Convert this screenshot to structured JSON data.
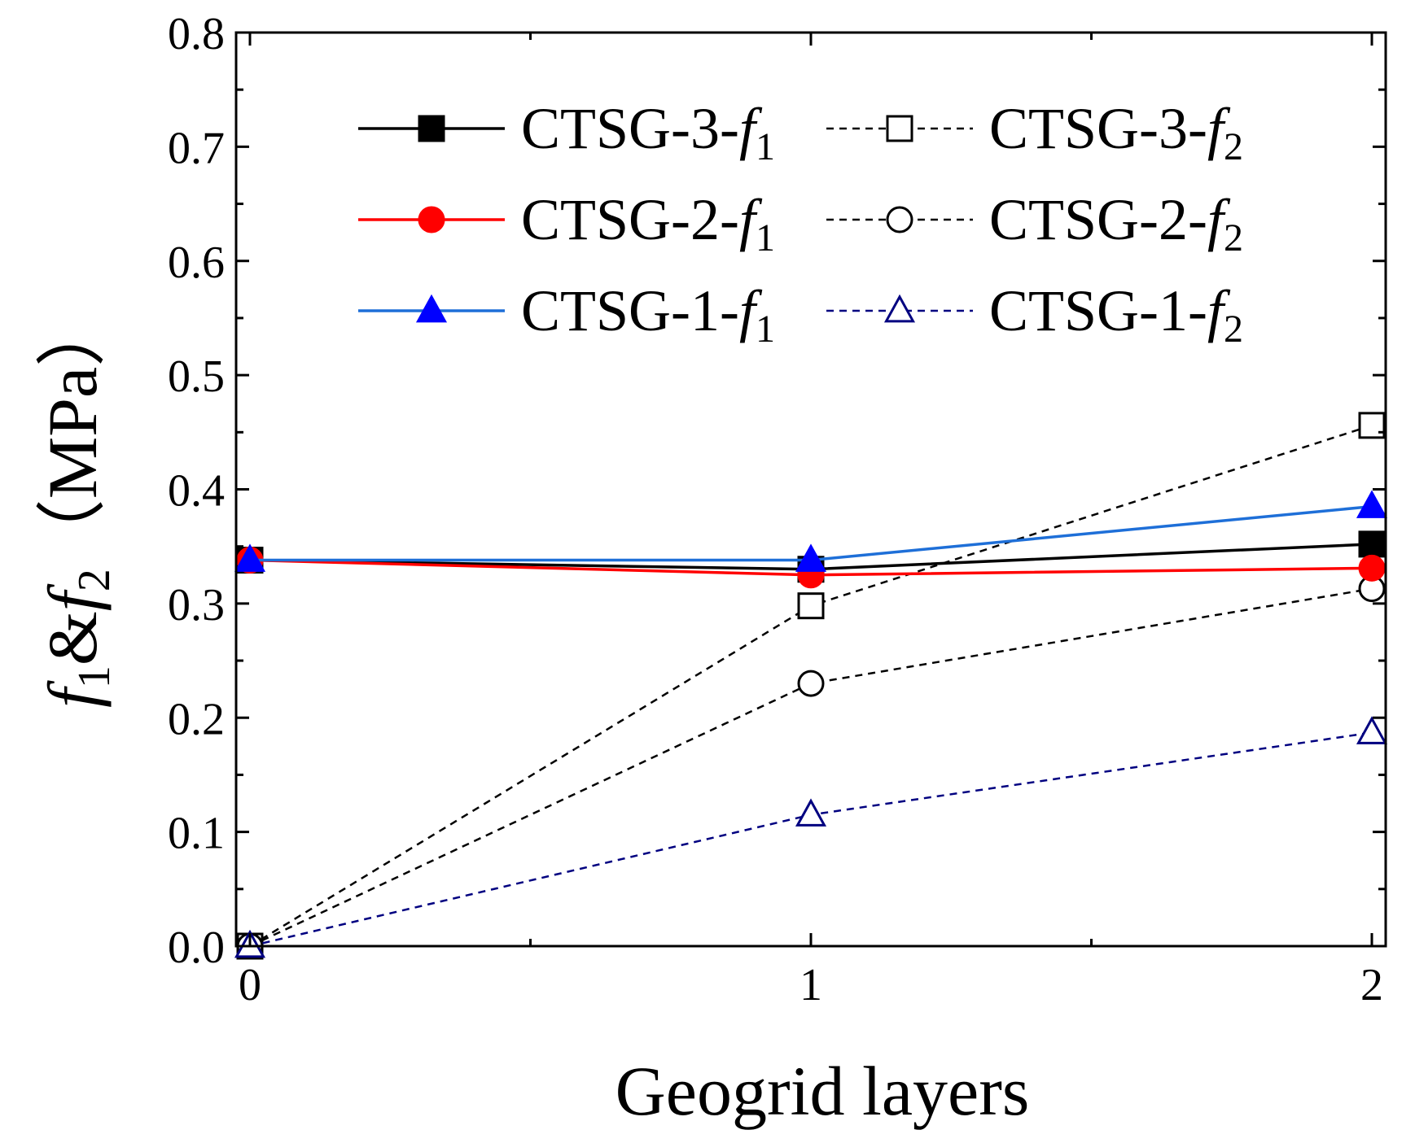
{
  "chart_data": {
    "type": "line",
    "title": "",
    "xlabel": "Geogrid layers",
    "ylabel": {
      "f1_symbol": "f",
      "f1_sub": "1",
      "amp": "&",
      "f2_symbol": "f",
      "f2_sub": "2",
      "unit": "（MPa）"
    },
    "x": [
      0,
      1,
      2
    ],
    "xticks": [
      "0",
      "1",
      "2"
    ],
    "ylim": [
      0,
      0.8
    ],
    "yticks": [
      "0.0",
      "0.1",
      "0.2",
      "0.3",
      "0.4",
      "0.5",
      "0.6",
      "0.7",
      "0.8"
    ],
    "grid": false,
    "legend_position": "top",
    "series": [
      {
        "name": "CTSG-3-f1",
        "label": "CTSG-3-",
        "sym": "f",
        "sub": "1",
        "values": [
          0.338,
          0.33,
          0.352
        ],
        "color": "#000000",
        "marker": "square",
        "filled": true,
        "dashed": false
      },
      {
        "name": "CTSG-3-f2",
        "label": "CTSG-3-",
        "sym": "f",
        "sub": "2",
        "values": [
          0.0,
          0.298,
          0.456
        ],
        "color": "#000000",
        "marker": "square",
        "filled": false,
        "dashed": true
      },
      {
        "name": "CTSG-2-f1",
        "label": "CTSG-2-",
        "sym": "f",
        "sub": "1",
        "values": [
          0.338,
          0.325,
          0.331
        ],
        "color": "#ff0000",
        "marker": "circle",
        "filled": true,
        "dashed": false
      },
      {
        "name": "CTSG-2-f2",
        "label": "CTSG-2-",
        "sym": "f",
        "sub": "2",
        "values": [
          0.0,
          0.23,
          0.313
        ],
        "color": "#000000",
        "marker": "circle",
        "filled": false,
        "dashed": true
      },
      {
        "name": "CTSG-1-f1",
        "label": "CTSG-1-",
        "sym": "f",
        "sub": "1",
        "values": [
          0.338,
          0.338,
          0.385
        ],
        "color": "#0000ff",
        "line_color": "#1e6fd8",
        "marker": "triangle",
        "filled": true,
        "dashed": false
      },
      {
        "name": "CTSG-1-f2",
        "label": "CTSG-1-",
        "sym": "f",
        "sub": "2",
        "values": [
          0.0,
          0.115,
          0.187
        ],
        "color": "#000080",
        "marker": "triangle",
        "filled": false,
        "dashed": true
      }
    ]
  }
}
